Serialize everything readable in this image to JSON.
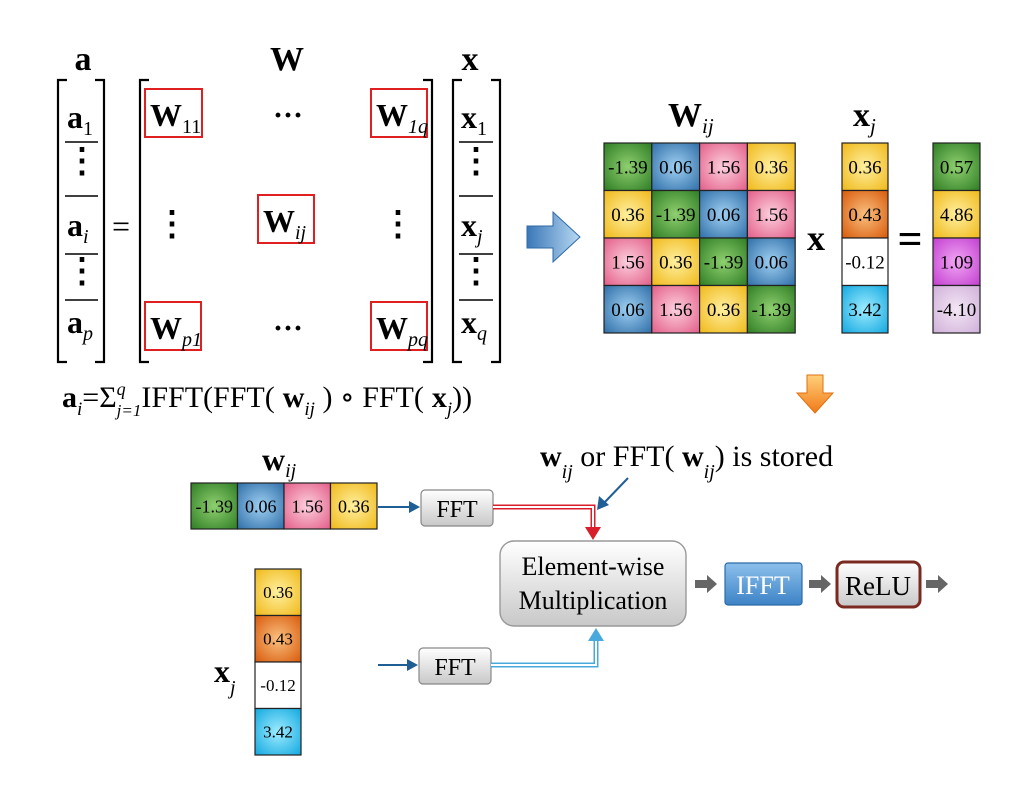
{
  "block_matrix": {
    "a_label": "a",
    "W_label": "W",
    "x_label": "x",
    "a_entries": [
      {
        "base": "a",
        "sub": "1"
      },
      {
        "dots": "⋮"
      },
      {
        "base": "a",
        "sub": "i"
      },
      {
        "dots": "⋮"
      },
      {
        "base": "a",
        "sub": "p"
      }
    ],
    "x_entries": [
      {
        "base": "x",
        "sub": "1"
      },
      {
        "dots": "⋮"
      },
      {
        "base": "x",
        "sub": "j"
      },
      {
        "dots": "⋮"
      },
      {
        "base": "x",
        "sub": "q"
      }
    ],
    "W_blocks": {
      "w11": {
        "base": "W",
        "sub": "11"
      },
      "w1q": {
        "base": "W",
        "sub": "1q"
      },
      "wij": {
        "base": "W",
        "sub": "ij"
      },
      "wp1": {
        "base": "W",
        "sub": "p1"
      },
      "wpq": {
        "base": "W",
        "sub": "pq"
      }
    },
    "hdots": "···",
    "vdots": "⋮",
    "equals": "="
  },
  "formula": {
    "lhs_base": "a",
    "lhs_sub": "i",
    "equals": "=",
    "sigma": "Σ",
    "sigma_sub": "j=1",
    "sigma_sup": "q",
    "p1": "IFFT(FFT(",
    "w_base": "w",
    "w_sub": "ij",
    "p2": ")",
    "circle_op": "∘",
    "p3": "FFT(",
    "x_base": "x",
    "x_sub": "j",
    "p4": "))"
  },
  "product": {
    "W_label_base": "W",
    "W_label_sub": "ij",
    "x_label_base": "x",
    "x_label_sub": "j",
    "times": "x",
    "equals": "=",
    "matrix": [
      [
        "-1.39",
        "0.06",
        "1.56",
        "0.36"
      ],
      [
        "0.36",
        "-1.39",
        "0.06",
        "1.56"
      ],
      [
        "1.56",
        "0.36",
        "-1.39",
        "0.06"
      ],
      [
        "0.06",
        "1.56",
        "0.36",
        "-1.39"
      ]
    ],
    "x_vector": [
      "0.36",
      "0.43",
      "-0.12",
      "3.42"
    ],
    "result": [
      "0.57",
      "4.86",
      "1.09",
      "-4.10"
    ]
  },
  "pipeline": {
    "w_label_base": "w",
    "w_label_sub": "ij",
    "w_vector": [
      "-1.39",
      "0.06",
      "1.56",
      "0.36"
    ],
    "x_label_base": "x",
    "x_label_sub": "j",
    "x_vector": [
      "0.36",
      "0.43",
      "-0.12",
      "3.42"
    ],
    "fft_label": "FFT",
    "elementwise_line1": "Element-wise",
    "elementwise_line2": "Multiplication",
    "ifft_label": "IFFT",
    "relu_label": "ReLU",
    "note_w_base": "w",
    "note_w_sub": "ij",
    "note_mid": " or FFT( ",
    "note_w2_base": "w",
    "note_w2_sub": "ij",
    "note_tail": ") is stored"
  },
  "colors": {
    "green": "#4ea23a",
    "blue": "#4f8cc4",
    "pink": "#ee7aa0",
    "yellow": "#f7d23a",
    "orange": "#ef7a1a",
    "white": "#ffffff",
    "cyan": "#38c2ee",
    "magenta": "#d65ee0",
    "lavender": "#dcc3e4",
    "highlight_red": "#e02020",
    "arrow_blue": "#1f5f95",
    "flow_red": "#d81e2a",
    "flow_blue": "#4aa9dc",
    "grey_arrow": "#666666",
    "relu_border": "#7b2a22",
    "ifft_fill": "#3d83c6"
  },
  "color_map": {
    "-1.39": "green",
    "0.06": "blue",
    "1.56": "pink",
    "0.36": "yellow",
    "0.43": "orange",
    "-0.12": "white",
    "3.42": "cyan",
    "0.57": "green",
    "4.86": "yellow",
    "1.09": "magenta",
    "-4.10": "lavender"
  },
  "icons": {
    "big_arrow_right": "block-arrow-right-icon",
    "big_arrow_down": "block-arrow-down-icon"
  }
}
